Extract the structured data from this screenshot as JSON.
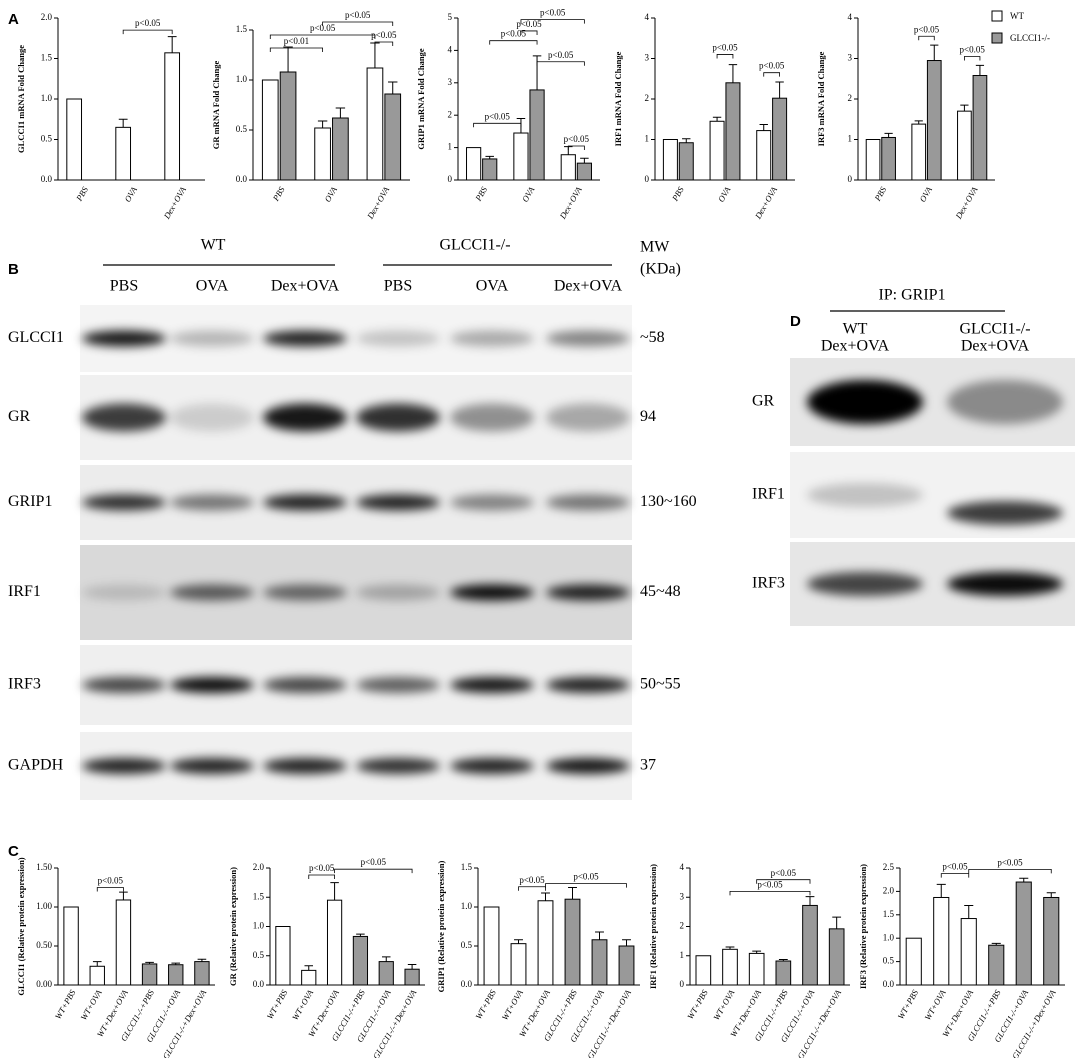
{
  "panel_labels": [
    "A",
    "B",
    "C",
    "D"
  ],
  "chart_data": [
    {
      "type": "bar",
      "ylabel": "GLCCI1 mRNA Fold Change",
      "categories": [
        "PBS",
        "OVA",
        "Dex+OVA"
      ],
      "series": [
        {
          "color": "#ffffff",
          "values": [
            1.0,
            0.65,
            1.57
          ],
          "errors": [
            null,
            0.1,
            0.2
          ]
        },
        {
          "color": "#999999",
          "values": [
            0,
            0,
            0
          ],
          "errors": [
            null,
            null,
            null
          ]
        }
      ],
      "ylim": [
        0,
        2
      ],
      "yticks": [
        {
          "value": 0,
          "label": "0.0"
        },
        0.5,
        {
          "value": 1,
          "label": "1.0"
        },
        1.5,
        {
          "value": 2,
          "label": "2.0"
        }
      ],
      "annotations": [
        "p<0.05"
      ]
    },
    {
      "type": "bar",
      "ylabel": "GR mRNA Fold Change",
      "categories": [
        "PBS",
        "OVA",
        "Dex+OVA"
      ],
      "series": [
        {
          "color": "#ffffff",
          "values": [
            1.0,
            0.52,
            1.12
          ],
          "errors": [
            null,
            0.07,
            0.25
          ]
        },
        {
          "color": "#999999",
          "values": [
            1.08,
            0.62,
            0.86
          ],
          "errors": [
            0.25,
            0.1,
            0.12
          ]
        }
      ],
      "ylim": [
        0,
        1.5
      ],
      "yticks": [
        {
          "value": 0,
          "label": "0.0"
        },
        0.5,
        {
          "value": 1,
          "label": "1.0"
        },
        1.5
      ],
      "annotations": [
        "p<0.01",
        "p<0.05",
        "p<0.05",
        "p<0.05"
      ]
    },
    {
      "type": "bar",
      "ylabel": "GRIP1 mRNA Fold Change",
      "categories": [
        "PBS",
        "OVA",
        "Dex+OVA"
      ],
      "series": [
        {
          "color": "#ffffff",
          "values": [
            1.0,
            1.45,
            0.78
          ],
          "errors": [
            null,
            0.45,
            0.25
          ]
        },
        {
          "color": "#999999",
          "values": [
            0.65,
            2.78,
            0.52
          ],
          "errors": [
            0.08,
            1.05,
            0.15
          ]
        }
      ],
      "ylim": [
        0,
        5
      ],
      "yticks": [
        0,
        1,
        2,
        3,
        4,
        5
      ],
      "annotations": [
        "p<0.05",
        "p<0.05",
        "p<0.05",
        "p<0.05",
        "p<0.05",
        "p<0.05"
      ]
    },
    {
      "type": "bar",
      "ylabel": "IRF1 mRNA Fold Change",
      "categories": [
        "PBS",
        "OVA",
        "Dex+OVA"
      ],
      "series": [
        {
          "color": "#ffffff",
          "values": [
            1.0,
            1.45,
            1.22
          ],
          "errors": [
            null,
            0.1,
            0.15
          ]
        },
        {
          "color": "#999999",
          "values": [
            0.92,
            2.4,
            2.02
          ],
          "errors": [
            0.1,
            0.45,
            0.4
          ]
        }
      ],
      "ylim": [
        0,
        4
      ],
      "yticks": [
        0,
        1,
        2,
        3,
        4
      ],
      "annotations": [
        "p<0.05",
        "p<0.05"
      ]
    },
    {
      "type": "bar",
      "ylabel": "IRF3 mRNA Fold Change",
      "categories": [
        "PBS",
        "OVA",
        "Dex+OVA"
      ],
      "series": [
        {
          "name": "WT",
          "color": "#ffffff",
          "values": [
            1.0,
            1.38,
            1.7
          ],
          "errors": [
            null,
            0.08,
            0.15
          ]
        },
        {
          "name": "GLCCI1-/-",
          "color": "#999999",
          "values": [
            1.05,
            2.95,
            2.58
          ],
          "errors": [
            0.1,
            0.38,
            0.25
          ]
        }
      ],
      "ylim": [
        0,
        4
      ],
      "yticks": [
        0,
        1,
        2,
        3,
        4
      ],
      "annotations": [
        "p<0.05",
        "p<0.05"
      ]
    },
    {
      "type": "bar",
      "ylabel": "GLCCI1 (Relative protein expression)",
      "categories": [
        "WT+PBS",
        "WT+OVA",
        "WT+Dex+OVA",
        "GLCCI1-/-+PBS",
        "GLCCI1-/-+OVA",
        "GLCCI1-/-+Dex+OVA"
      ],
      "colors": [
        "#ffffff",
        "#ffffff",
        "#ffffff",
        "#999999",
        "#999999",
        "#999999"
      ],
      "values": [
        1.0,
        0.24,
        1.09,
        0.27,
        0.26,
        0.3
      ],
      "errors": [
        null,
        0.06,
        0.1,
        0.02,
        0.02,
        0.03
      ],
      "ylim": [
        0,
        1.5
      ],
      "yticks": [
        {
          "value": 0,
          "label": "0.00"
        },
        {
          "value": 0.5,
          "label": "0.50"
        },
        {
          "value": 1,
          "label": "1.00"
        },
        {
          "value": 1.5,
          "label": "1.50"
        }
      ],
      "annotations": [
        "p<0.05"
      ]
    },
    {
      "type": "bar",
      "ylabel": "GR (Relative protein expression)",
      "categories": [
        "WT+PBS",
        "WT+OVA",
        "WT+Dex+OVA",
        "GLCCI1-/-+PBS",
        "GLCCI1-/-+OVA",
        "GLCCI1-/-+Dex+OVA"
      ],
      "colors": [
        "#ffffff",
        "#ffffff",
        "#ffffff",
        "#999999",
        "#999999",
        "#999999"
      ],
      "values": [
        1.0,
        0.25,
        1.45,
        0.83,
        0.4,
        0.27
      ],
      "errors": [
        null,
        0.08,
        0.3,
        0.04,
        0.08,
        0.08
      ],
      "ylim": [
        0,
        2
      ],
      "yticks": [
        {
          "value": 0,
          "label": "0.0"
        },
        0.5,
        {
          "value": 1,
          "label": "1.0"
        },
        1.5,
        {
          "value": 2,
          "label": "2.0"
        }
      ],
      "annotations": [
        "p<0.05",
        "p<0.05"
      ]
    },
    {
      "type": "bar",
      "ylabel": "GRIP1 (Relative protein expression)",
      "categories": [
        "WT+PBS",
        "WT+OVA",
        "WT+Dex+OVA",
        "GLCCI1-/-+PBS",
        "GLCCI1-/-+OVA",
        "GLCCI1-/-+Dex+OVA"
      ],
      "colors": [
        "#ffffff",
        "#ffffff",
        "#ffffff",
        "#999999",
        "#999999",
        "#999999"
      ],
      "values": [
        1.0,
        0.53,
        1.08,
        1.1,
        0.58,
        0.5
      ],
      "errors": [
        null,
        0.05,
        0.1,
        0.15,
        0.1,
        0.08
      ],
      "ylim": [
        0,
        1.5
      ],
      "yticks": [
        {
          "value": 0,
          "label": "0.0"
        },
        0.5,
        {
          "value": 1,
          "label": "1.0"
        },
        1.5
      ],
      "annotations": [
        "p<0.05",
        "p<0.05"
      ]
    },
    {
      "type": "bar",
      "ylabel": "IRF1 (Relative protein expression)",
      "categories": [
        "WT+PBS",
        "WT+OVA",
        "WT+Dex+OVA",
        "GLCCI1-/-+PBS",
        "GLCCI1-/-+OVA",
        "GLCCI1-/-+Dex+OVA"
      ],
      "colors": [
        "#ffffff",
        "#ffffff",
        "#ffffff",
        "#999999",
        "#999999",
        "#999999"
      ],
      "values": [
        1.0,
        1.22,
        1.08,
        0.82,
        2.72,
        1.92
      ],
      "errors": [
        null,
        0.08,
        0.08,
        0.05,
        0.3,
        0.4
      ],
      "ylim": [
        0,
        4
      ],
      "yticks": [
        0,
        1,
        2,
        3,
        4
      ],
      "annotations": [
        "p<0.05",
        "p<0.05"
      ]
    },
    {
      "type": "bar",
      "ylabel": "IRF3 (Relative protein expression)",
      "categories": [
        "WT+PBS",
        "WT+OVA",
        "WT+Dex+OVA",
        "GLCCI1-/-+PBS",
        "GLCCI1-/-+OVA",
        "GLCCI1-/-+Dex+OVA"
      ],
      "colors": [
        "#ffffff",
        "#ffffff",
        "#ffffff",
        "#999999",
        "#999999",
        "#999999"
      ],
      "values": [
        1.0,
        1.87,
        1.42,
        0.85,
        2.2,
        1.87
      ],
      "errors": [
        null,
        0.28,
        0.28,
        0.04,
        0.08,
        0.1
      ],
      "ylim": [
        0,
        2.5
      ],
      "yticks": [
        {
          "value": 0,
          "label": "0.0"
        },
        0.5,
        {
          "value": 1,
          "label": "1.0"
        },
        1.5,
        {
          "value": 2,
          "label": "2.0"
        },
        2.5
      ],
      "annotations": [
        "p<0.05",
        "p<0.05"
      ]
    }
  ],
  "blot_b": {
    "groups": [
      "WT",
      "GLCCI1-/-"
    ],
    "mw_header": [
      "MW",
      "(KDa)"
    ],
    "lanes": [
      "PBS",
      "OVA",
      "Dex+OVA",
      "PBS",
      "OVA",
      "Dex+OVA"
    ],
    "rows": [
      {
        "label": "GLCCI1",
        "mw": "~58"
      },
      {
        "label": "GR",
        "mw": "94"
      },
      {
        "label": "GRIP1",
        "mw": "130~160"
      },
      {
        "label": "IRF1",
        "mw": "45~48"
      },
      {
        "label": "IRF3",
        "mw": "50~55"
      },
      {
        "label": "GAPDH",
        "mw": "37"
      }
    ]
  },
  "blot_d": {
    "header": "IP: GRIP1",
    "lanes": [
      [
        "WT",
        "Dex+OVA"
      ],
      [
        "GLCCI1-/-",
        "Dex+OVA"
      ]
    ],
    "rows": [
      "GR",
      "IRF1",
      "IRF3"
    ]
  }
}
